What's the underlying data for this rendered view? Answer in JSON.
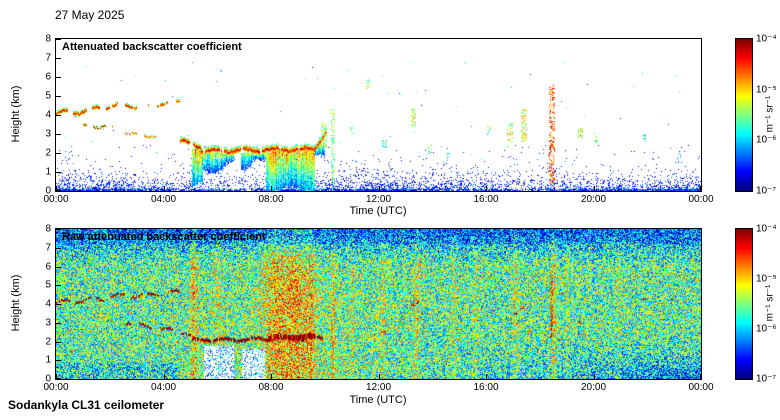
{
  "date_label": "27 May 2025",
  "footer_label": "Sodankyla CL31 ceilometer",
  "chart_data": [
    {
      "type": "heatmap",
      "title": "Attenuated backscatter coefficient",
      "xlabel": "Time (UTC)",
      "ylabel": "Height (km)",
      "x_ticks": [
        "00:00",
        "04:00",
        "08:00",
        "12:00",
        "16:00",
        "20:00",
        "00:00"
      ],
      "x_range_hours": [
        0,
        24
      ],
      "y_ticks": [
        0,
        1,
        2,
        3,
        4,
        5,
        6,
        7,
        8
      ],
      "y_range_km": [
        0,
        8
      ],
      "colorbar": {
        "colormap": "jet",
        "scale": "log10",
        "min_value": 1e-07,
        "max_value": 0.0001,
        "ticks": [
          "10⁻⁴",
          "10⁻⁵",
          "10⁻⁶",
          "10⁻⁷"
        ],
        "unit": "m⁻¹ sr⁻¹"
      },
      "background": "white",
      "boundary_layer": {
        "top_km": 1.3,
        "surface_density": 0.6,
        "decay_km": 0.4
      },
      "cloud_layers": [
        {
          "t0": 0.0,
          "t1": 1.6,
          "base0": 4.0,
          "base1": 4.25,
          "wave": 0.12,
          "thick": 0.35,
          "gap": 0.18
        },
        {
          "t0": 1.6,
          "t1": 3.2,
          "base0": 4.3,
          "base1": 4.5,
          "wave": 0.14,
          "thick": 0.3,
          "gap": 0.3
        },
        {
          "t0": 3.4,
          "t1": 4.6,
          "base0": 4.45,
          "base1": 4.65,
          "wave": 0.1,
          "thick": 0.28,
          "gap": 0.4
        },
        {
          "t0": 1.0,
          "t1": 2.1,
          "base0": 3.45,
          "base1": 3.3,
          "wave": 0.08,
          "thick": 0.22,
          "gap": 0.25
        },
        {
          "t0": 2.5,
          "t1": 3.7,
          "base0": 3.0,
          "base1": 2.85,
          "wave": 0.06,
          "thick": 0.18,
          "gap": 0.35
        },
        {
          "t0": 4.6,
          "t1": 5.4,
          "base0": 2.6,
          "base1": 2.15,
          "wave": 0.06,
          "thick": 0.45,
          "gap": 0.08
        },
        {
          "t0": 5.4,
          "t1": 9.6,
          "base0": 2.0,
          "base1": 2.1,
          "wave": 0.08,
          "thick": 0.55,
          "gap": 0.02
        },
        {
          "t0": 9.6,
          "t1": 10.05,
          "base0": 2.2,
          "base1": 2.9,
          "wave": 0.1,
          "thick": 0.5,
          "gap": 0.05
        }
      ],
      "precip": [
        {
          "t0": 5.05,
          "t1": 5.45,
          "top": 2.2,
          "dmin": 1.7,
          "dmax": 2.2,
          "heavy": true
        },
        {
          "t0": 5.45,
          "t1": 6.6,
          "top": 2.0,
          "dmin": 0.4,
          "dmax": 1.1,
          "heavy": false
        },
        {
          "t0": 6.9,
          "t1": 7.8,
          "top": 2.0,
          "dmin": 0.3,
          "dmax": 0.9,
          "heavy": false
        },
        {
          "t0": 7.8,
          "t1": 9.6,
          "top": 2.2,
          "dmin": 1.9,
          "dmax": 2.3,
          "heavy": true
        },
        {
          "t0": 9.6,
          "t1": 10.0,
          "top": 2.4,
          "dmin": 0.5,
          "dmax": 1.1,
          "heavy": false
        }
      ],
      "clutter": [
        {
          "t": 9.95,
          "h0": 2.3,
          "h1": 3.6,
          "w": 0.1,
          "int": 0.55
        },
        {
          "t": 10.3,
          "h0": 0.3,
          "h1": 4.4,
          "w": 0.08,
          "int": 0.5
        },
        {
          "t": 11.0,
          "h0": 3.0,
          "h1": 3.4,
          "w": 0.06,
          "int": 0.45
        },
        {
          "t": 11.6,
          "h0": 5.4,
          "h1": 5.9,
          "w": 0.07,
          "int": 0.5
        },
        {
          "t": 12.2,
          "h0": 2.3,
          "h1": 2.7,
          "w": 0.08,
          "int": 0.42
        },
        {
          "t": 13.3,
          "h0": 3.3,
          "h1": 4.3,
          "w": 0.09,
          "int": 0.6
        },
        {
          "t": 13.9,
          "h0": 2.0,
          "h1": 2.5,
          "w": 0.07,
          "int": 0.45
        },
        {
          "t": 14.6,
          "h0": 1.6,
          "h1": 2.0,
          "w": 0.05,
          "int": 0.4
        },
        {
          "t": 16.1,
          "h0": 2.8,
          "h1": 3.4,
          "w": 0.07,
          "int": 0.5
        },
        {
          "t": 16.9,
          "h0": 2.3,
          "h1": 3.6,
          "w": 0.1,
          "int": 0.55
        },
        {
          "t": 17.4,
          "h0": 2.6,
          "h1": 4.3,
          "w": 0.1,
          "int": 0.6
        },
        {
          "t": 18.45,
          "h0": 0.4,
          "h1": 5.6,
          "w": 0.09,
          "int": 0.8
        },
        {
          "t": 19.5,
          "h0": 2.8,
          "h1": 3.3,
          "w": 0.08,
          "int": 0.6
        },
        {
          "t": 20.1,
          "h0": 2.5,
          "h1": 2.9,
          "w": 0.05,
          "int": 0.45
        },
        {
          "t": 21.9,
          "h0": 2.6,
          "h1": 3.0,
          "w": 0.04,
          "int": 0.4
        },
        {
          "t": 23.2,
          "h0": 1.5,
          "h1": 2.0,
          "w": 0.05,
          "int": 0.35
        }
      ]
    },
    {
      "type": "heatmap",
      "title": "Raw attenuated backscatter coefficient",
      "xlabel": "Time (UTC)",
      "ylabel": "Height (km)",
      "x_ticks": [
        "00:00",
        "04:00",
        "08:00",
        "12:00",
        "16:00",
        "20:00",
        "00:00"
      ],
      "x_range_hours": [
        0,
        24
      ],
      "y_ticks": [
        0,
        1,
        2,
        3,
        4,
        5,
        6,
        7,
        8
      ],
      "y_range_km": [
        0,
        8
      ],
      "colorbar": {
        "colormap": "jet",
        "scale": "log10",
        "min_value": 1e-07,
        "max_value": 0.0001,
        "ticks": [
          "10⁻⁴",
          "10⁻⁵",
          "10⁻⁶",
          "10⁻⁷"
        ],
        "unit": "m⁻¹ sr⁻¹"
      },
      "noise": {
        "base": 0.46,
        "speckle": 0.27
      },
      "pale_columns": [
        {
          "t0": 5.5,
          "t1": 6.6,
          "top": 1.8
        },
        {
          "t0": 6.9,
          "t1": 7.75,
          "top": 1.6
        }
      ],
      "bright_stripes": [
        {
          "t": 5.1,
          "w": 0.15,
          "amt": 0.18
        },
        {
          "t": 6.0,
          "w": 0.2,
          "amt": 0.08
        },
        {
          "t": 8.1,
          "w": 0.5,
          "amt": 0.16
        },
        {
          "t": 8.9,
          "w": 0.5,
          "amt": 0.18
        },
        {
          "t": 9.5,
          "w": 0.2,
          "amt": 0.14
        },
        {
          "t": 10.3,
          "w": 0.1,
          "amt": 0.14
        },
        {
          "t": 11.0,
          "w": 0.1,
          "amt": 0.08
        },
        {
          "t": 12.15,
          "w": 0.1,
          "amt": 0.1
        },
        {
          "t": 13.4,
          "w": 0.12,
          "amt": 0.12
        },
        {
          "t": 14.8,
          "w": 0.1,
          "amt": 0.08
        },
        {
          "t": 15.6,
          "w": 0.1,
          "amt": 0.06
        },
        {
          "t": 17.1,
          "w": 0.15,
          "amt": 0.1
        },
        {
          "t": 18.5,
          "w": 0.1,
          "amt": 0.16
        },
        {
          "t": 19.0,
          "w": 0.08,
          "amt": 0.08
        },
        {
          "t": 20.9,
          "w": 0.1,
          "amt": 0.06
        }
      ],
      "cloud_layers": [
        {
          "t0": 0.0,
          "t1": 1.6,
          "base0": 4.05,
          "base1": 4.3,
          "wave": 0.12,
          "gap": 0.18,
          "red_thick": 2
        },
        {
          "t0": 1.6,
          "t1": 3.2,
          "base0": 4.3,
          "base1": 4.5,
          "wave": 0.14,
          "gap": 0.3,
          "red_thick": 2
        },
        {
          "t0": 3.4,
          "t1": 4.6,
          "base0": 4.5,
          "base1": 4.65,
          "wave": 0.1,
          "gap": 0.4,
          "red_thick": 2
        },
        {
          "t0": 2.6,
          "t1": 5.0,
          "base0": 3.0,
          "base1": 2.4,
          "wave": 0.06,
          "gap": 0.4,
          "red_thick": 2
        },
        {
          "t0": 5.0,
          "t1": 9.9,
          "base0": 2.05,
          "base1": 2.15,
          "wave": 0.07,
          "gap": 0.02,
          "red_thick": 3
        },
        {
          "t0": 7.9,
          "t1": 9.6,
          "base0": 2.1,
          "base1": 2.2,
          "wave": 0.05,
          "gap": 0.0,
          "red_thick": 5
        }
      ],
      "red_marks": [
        {
          "t": 13.3,
          "h": 3.9
        },
        {
          "t": 13.45,
          "h": 4.1
        },
        {
          "t": 16.9,
          "h": 3.2
        },
        {
          "t": 17.1,
          "h": 3.5
        },
        {
          "t": 17.35,
          "h": 3.8
        },
        {
          "t": 19.5,
          "h": 3.0
        },
        {
          "t": 21.9,
          "h": 4.3
        },
        {
          "t": 12.2,
          "h": 2.5
        }
      ],
      "streaks": [
        {
          "t": 18.45,
          "h0": 2.2,
          "h1": 5.5
        }
      ]
    }
  ]
}
